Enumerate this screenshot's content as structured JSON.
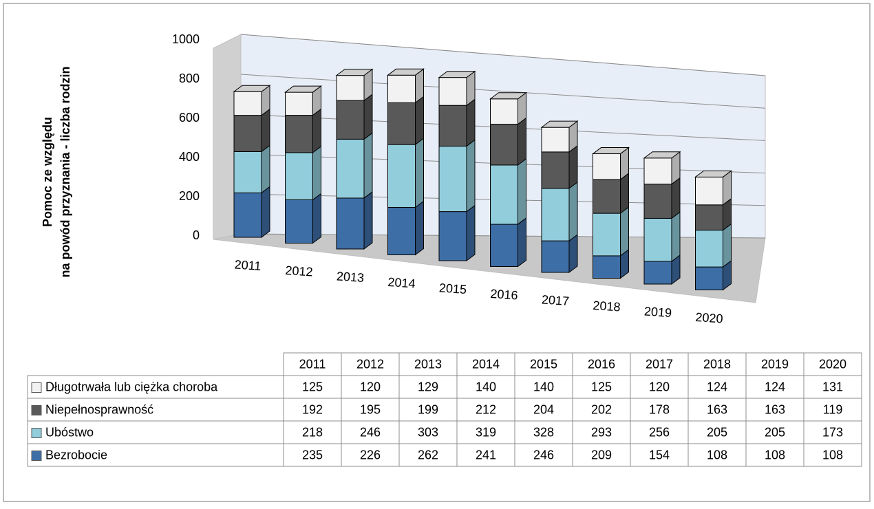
{
  "chart_data": {
    "type": "bar",
    "stacked": true,
    "ylabel": [
      "Pomoc ze względu",
      "na powód przyznania - liczba rodzin"
    ],
    "categories": [
      "2011",
      "2012",
      "2013",
      "2014",
      "2015",
      "2016",
      "2017",
      "2018",
      "2019",
      "2020"
    ],
    "series": [
      {
        "name": "Bezrobocie",
        "color": "#3e6ea6",
        "values": [
          235,
          226,
          262,
          241,
          246,
          209,
          154,
          108,
          108,
          108
        ]
      },
      {
        "name": "Ubóstwo",
        "color": "#92cddc",
        "values": [
          218,
          246,
          303,
          319,
          328,
          293,
          256,
          205,
          205,
          173
        ]
      },
      {
        "name": "Niepełnosprawność",
        "color": "#595959",
        "values": [
          192,
          195,
          199,
          212,
          204,
          202,
          178,
          163,
          163,
          119
        ]
      },
      {
        "name": "Długotrwała lub ciężka choroba",
        "color": "#f2f2f2",
        "values": [
          125,
          120,
          129,
          140,
          140,
          125,
          120,
          124,
          124,
          131
        ]
      }
    ],
    "ylim": [
      0,
      1000
    ],
    "yticks": [
      0,
      200,
      400,
      600,
      800,
      1000
    ],
    "grid": true,
    "data_table": true
  }
}
